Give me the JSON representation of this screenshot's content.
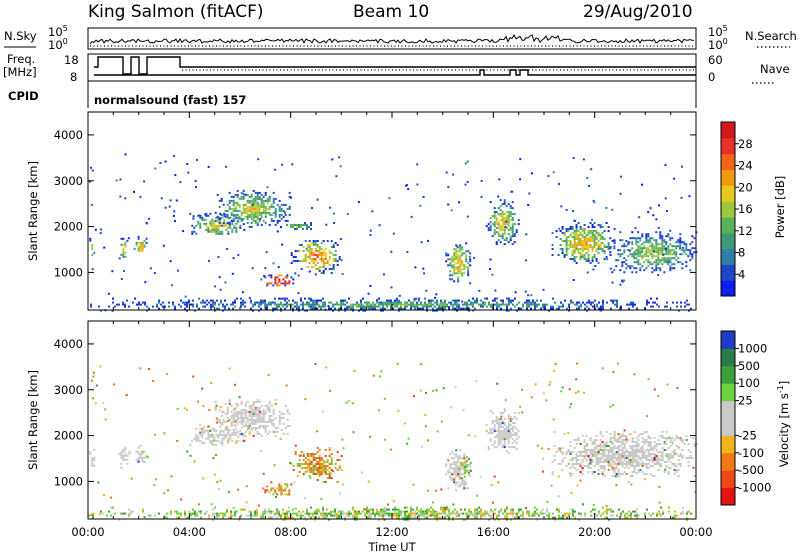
{
  "header": {
    "site": "King Salmon (fitACF)",
    "beam": "Beam 10",
    "date": "29/Aug/2010"
  },
  "strip_labels": {
    "nsky": "N.Sky",
    "nsearch": "N.Search",
    "freq": "Freq.",
    "freq_unit": "[MHz]",
    "nave": "Nave",
    "cpid": "CPID",
    "cpid_value": "normalsound (fast) 157"
  },
  "strip_ticks": {
    "noise_left": [
      "10^5",
      "10^0"
    ],
    "noise_right": [
      "10^5",
      "10^0"
    ],
    "freq_left": [
      "18",
      "8"
    ],
    "nave_right": [
      "60",
      "0"
    ]
  },
  "chart_data": [
    {
      "type": "heatmap",
      "panel": "power",
      "xlabel": "",
      "ylabel": "Slant Range [km]",
      "xlim_hours": [
        0,
        24
      ],
      "ylim": [
        180,
        4500
      ],
      "yticks": [
        "1000",
        "2000",
        "3000",
        "4000"
      ],
      "colorbar": {
        "label": "Power [dB]",
        "ticks": [
          "4",
          "8",
          "12",
          "16",
          "20",
          "24",
          "28"
        ],
        "colors": [
          "#0a1ef0",
          "#1e46c8",
          "#2f7ea6",
          "#3f9a78",
          "#5bb05a",
          "#9cc83a",
          "#e8c81e",
          "#f09a14",
          "#f0641e",
          "#e63228",
          "#d21a1a"
        ]
      },
      "regions": [
        {
          "t": [
            0.05,
            0.25
          ],
          "r": [
            1300,
            1800
          ],
          "level": 0.35
        },
        {
          "t": [
            1.2,
            1.6
          ],
          "r": [
            1300,
            1800
          ],
          "level": 0.45
        },
        {
          "t": [
            1.8,
            2.3
          ],
          "r": [
            1400,
            1800
          ],
          "level": 0.45
        },
        {
          "t": [
            4.0,
            6.2
          ],
          "r": [
            1800,
            2300
          ],
          "level": 0.4
        },
        {
          "t": [
            5.0,
            8.0
          ],
          "r": [
            2000,
            2800
          ],
          "level": 0.35
        },
        {
          "t": [
            7.5,
            9.0
          ],
          "r": [
            1950,
            2100
          ],
          "level": 0.3
        },
        {
          "t": [
            8.0,
            10.0
          ],
          "r": [
            1000,
            1750
          ],
          "level": 0.55
        },
        {
          "t": [
            6.8,
            8.2
          ],
          "r": [
            700,
            1000
          ],
          "level": 0.85
        },
        {
          "t": [
            14.1,
            15.1
          ],
          "r": [
            750,
            1700
          ],
          "level": 0.45
        },
        {
          "t": [
            15.7,
            17.0
          ],
          "r": [
            1600,
            2600
          ],
          "level": 0.4
        },
        {
          "t": [
            18.3,
            20.8
          ],
          "r": [
            1200,
            2100
          ],
          "level": 0.45
        },
        {
          "t": [
            20.5,
            24.0
          ],
          "r": [
            1000,
            1900
          ],
          "level": 0.3
        },
        {
          "t": [
            0.0,
            24.0
          ],
          "r": [
            180,
            450
          ],
          "level": 0.2
        }
      ]
    },
    {
      "type": "heatmap",
      "panel": "velocity",
      "xlabel": "Time UT",
      "ylabel": "Slant Range [km]",
      "xlim_hours": [
        0,
        24
      ],
      "ylim": [
        180,
        4500
      ],
      "yticks": [
        "1000",
        "2000",
        "3000",
        "4000"
      ],
      "xticks": [
        "00:00",
        "04:00",
        "08:00",
        "12:00",
        "16:00",
        "20:00",
        "00:00"
      ],
      "colorbar": {
        "label": "Velocity [m s^-1]",
        "ticks": [
          "1000",
          "500",
          "100",
          "25",
          "-25",
          "-100",
          "-500",
          "-1000"
        ],
        "colors": [
          "#1e3cc8",
          "#2b7a4a",
          "#3ca03c",
          "#6ed23c",
          "#c8c8c8",
          "#c8c8c8",
          "#f0b41e",
          "#f07814",
          "#eb4614",
          "#e61414"
        ]
      },
      "regions": [
        {
          "t": [
            0.05,
            0.25
          ],
          "r": [
            1300,
            1800
          ],
          "kind": "ground"
        },
        {
          "t": [
            1.2,
            1.6
          ],
          "r": [
            1300,
            1800
          ],
          "kind": "ground"
        },
        {
          "t": [
            1.8,
            2.3
          ],
          "r": [
            1400,
            1800
          ],
          "kind": "ground"
        },
        {
          "t": [
            4.0,
            6.2
          ],
          "r": [
            1800,
            2300
          ],
          "kind": "ground"
        },
        {
          "t": [
            5.0,
            8.0
          ],
          "r": [
            2000,
            2800
          ],
          "kind": "ground"
        },
        {
          "t": [
            8.0,
            10.0
          ],
          "r": [
            1000,
            1750
          ],
          "kind": "negative"
        },
        {
          "t": [
            6.8,
            8.2
          ],
          "r": [
            700,
            1000
          ],
          "kind": "negative"
        },
        {
          "t": [
            14.1,
            15.1
          ],
          "r": [
            750,
            1700
          ],
          "kind": "ground"
        },
        {
          "t": [
            14.6,
            15.1
          ],
          "r": [
            1100,
            1600
          ],
          "kind": "positive"
        },
        {
          "t": [
            15.7,
            17.0
          ],
          "r": [
            1600,
            2600
          ],
          "kind": "ground"
        },
        {
          "t": [
            18.3,
            24.0
          ],
          "r": [
            1100,
            2100
          ],
          "kind": "ground"
        },
        {
          "t": [
            0.0,
            24.0
          ],
          "r": [
            180,
            450
          ],
          "kind": "positive"
        }
      ]
    }
  ]
}
